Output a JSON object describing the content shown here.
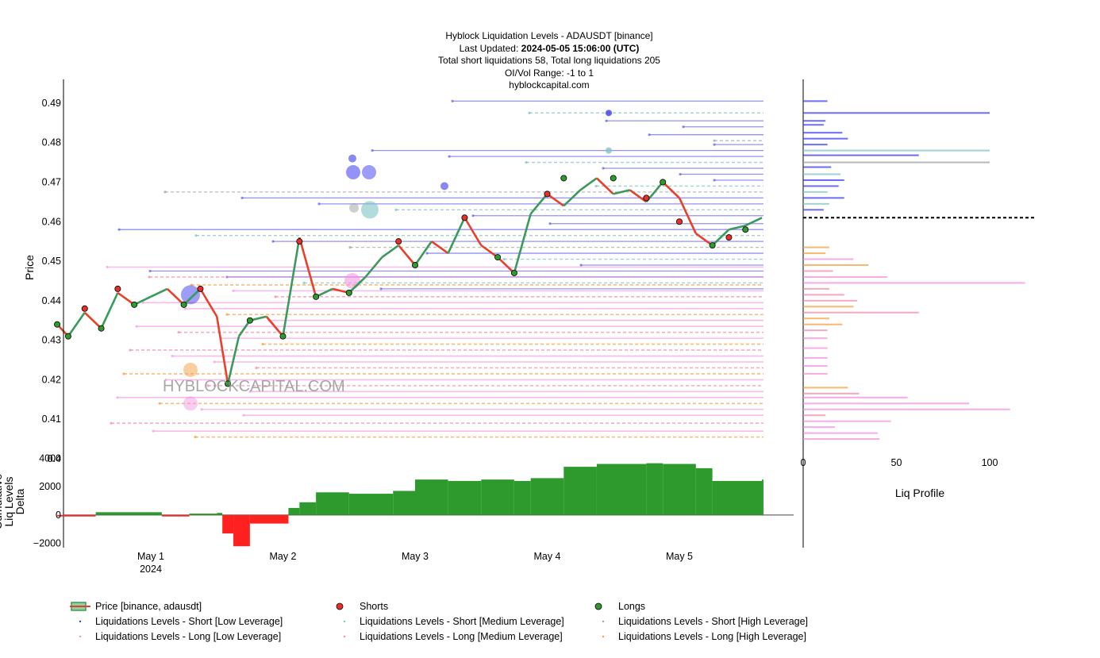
{
  "header": {
    "title": "Hyblock Liquidation Levels - ADAUSDT [binance]",
    "last_updated_label": "Last Updated: ",
    "last_updated_value": "2024-05-05 15:06:00 (UTC)",
    "totals": "Total short liquidations 58, Total long liquidations 205",
    "oi_range": "OI/Vol Range: -1 to 1",
    "site": "hyblockcapital.com"
  },
  "watermark": "HYBLOCKCAPITAL.COM",
  "colors": {
    "short_low": "#3b3bf0",
    "short_medium": "#7fc4c4",
    "short_high": "#a0a0a0",
    "long_low": "#f48fe0",
    "long_medium": "#f48aa8",
    "long_high": "#f5a040",
    "price_up": "#3a9a5a",
    "price_down": "#e8402a",
    "shorts_marker": "#e8302a",
    "longs_marker": "#2e9a2e",
    "delta_pos": "#2e9a2e",
    "delta_neg": "#ff2020"
  },
  "chart_data": [
    {
      "type": "line",
      "name": "price-panel",
      "ylabel": "Price",
      "ylim": [
        0.4,
        0.496
      ],
      "y_ticks": [
        "0.4",
        "0.41",
        "0.42",
        "0.43",
        "0.44",
        "0.45",
        "0.46",
        "0.47",
        "0.48",
        "0.49"
      ],
      "x_ticks": [
        "May 1",
        "May 2",
        "May 3",
        "May 4",
        "May 5"
      ],
      "x_sub": "2024",
      "xlim": [
        "2024-04-30 04:00",
        "2024-05-06 00:00"
      ],
      "price": {
        "x": [
          "2024-04-30 07:00",
          "2024-04-30 09:00",
          "2024-04-30 12:00",
          "2024-04-30 15:00",
          "2024-04-30 18:00",
          "2024-04-30 21:00",
          "2024-05-01 00:00",
          "2024-05-01 03:00",
          "2024-05-01 06:00",
          "2024-05-01 09:00",
          "2024-05-01 12:00",
          "2024-05-01 14:00",
          "2024-05-01 16:00",
          "2024-05-01 18:00",
          "2024-05-01 21:00",
          "2024-05-02 00:00",
          "2024-05-02 03:00",
          "2024-05-02 06:00",
          "2024-05-02 09:00",
          "2024-05-02 12:00",
          "2024-05-02 15:00",
          "2024-05-02 18:00",
          "2024-05-02 21:00",
          "2024-05-03 00:00",
          "2024-05-03 03:00",
          "2024-05-03 06:00",
          "2024-05-03 09:00",
          "2024-05-03 12:00",
          "2024-05-03 15:00",
          "2024-05-03 18:00",
          "2024-05-03 21:00",
          "2024-05-04 00:00",
          "2024-05-04 03:00",
          "2024-05-04 06:00",
          "2024-05-04 09:00",
          "2024-05-04 12:00",
          "2024-05-04 15:00",
          "2024-05-04 18:00",
          "2024-05-04 21:00",
          "2024-05-05 00:00",
          "2024-05-05 03:00",
          "2024-05-05 06:00",
          "2024-05-05 09:00",
          "2024-05-05 12:00",
          "2024-05-05 15:00"
        ],
        "y": [
          0.434,
          0.431,
          0.437,
          0.433,
          0.442,
          0.439,
          0.441,
          0.443,
          0.439,
          0.443,
          0.436,
          0.419,
          0.431,
          0.435,
          0.436,
          0.431,
          0.456,
          0.441,
          0.443,
          0.442,
          0.446,
          0.451,
          0.454,
          0.449,
          0.455,
          0.452,
          0.461,
          0.454,
          0.451,
          0.447,
          0.462,
          0.467,
          0.464,
          0.468,
          0.471,
          0.467,
          0.468,
          0.465,
          0.47,
          0.466,
          0.457,
          0.454,
          0.458,
          0.459,
          0.461
        ]
      },
      "shorts": {
        "x": [
          "2024-04-30 12:00",
          "2024-04-30 18:00",
          "2024-05-01 09:00",
          "2024-05-02 03:00",
          "2024-05-02 21:00",
          "2024-05-03 09:00",
          "2024-05-04 00:00",
          "2024-05-04 18:00",
          "2024-05-05 00:00",
          "2024-05-05 09:00"
        ],
        "y": [
          0.438,
          0.443,
          0.443,
          0.455,
          0.455,
          0.461,
          0.467,
          0.466,
          0.46,
          0.456
        ]
      },
      "longs": {
        "x": [
          "2024-04-30 07:00",
          "2024-04-30 09:00",
          "2024-04-30 15:00",
          "2024-04-30 21:00",
          "2024-05-01 06:00",
          "2024-05-01 14:00",
          "2024-05-01 18:00",
          "2024-05-02 00:00",
          "2024-05-02 06:00",
          "2024-05-02 12:00",
          "2024-05-03 00:00",
          "2024-05-03 15:00",
          "2024-05-03 18:00",
          "2024-05-04 03:00",
          "2024-05-04 12:00",
          "2024-05-04 21:00",
          "2024-05-05 06:00",
          "2024-05-05 12:00"
        ],
        "y": [
          0.434,
          0.431,
          0.433,
          0.439,
          0.439,
          0.419,
          0.435,
          0.431,
          0.441,
          0.442,
          0.449,
          0.451,
          0.447,
          0.471,
          0.471,
          0.47,
          0.454,
          0.458
        ]
      },
      "liq_levels": {
        "short": [
          0.4905,
          0.4875,
          0.4855,
          0.484,
          0.482,
          0.4805,
          0.4795,
          0.478,
          0.4765,
          0.475,
          0.4735,
          0.472,
          0.4705,
          0.469,
          0.4675,
          0.466,
          0.4645,
          0.463,
          0.4615,
          0.4595,
          0.458,
          0.4565,
          0.455,
          0.4535,
          0.452,
          0.4505,
          0.449,
          0.4475,
          0.446,
          0.4445,
          0.443
        ],
        "long": [
          0.4485,
          0.446,
          0.444,
          0.4425,
          0.441,
          0.4395,
          0.438,
          0.4365,
          0.435,
          0.4335,
          0.432,
          0.4305,
          0.429,
          0.4275,
          0.426,
          0.4245,
          0.423,
          0.4215,
          0.42,
          0.4185,
          0.417,
          0.4155,
          0.414,
          0.4125,
          0.411,
          0.409,
          0.407,
          0.4055
        ]
      }
    },
    {
      "type": "area",
      "name": "cumulative-delta",
      "ylabel": "Cumulative Liq Levels Delta",
      "y_ticks": [
        "−2000",
        "0",
        "2000",
        "4000"
      ],
      "ylim": [
        -2300,
        4300
      ],
      "x": [
        "2024-04-30 07:00",
        "2024-04-30 14:00",
        "2024-05-01 02:00",
        "2024-05-01 07:00",
        "2024-05-01 12:00",
        "2024-05-01 13:00",
        "2024-05-01 15:00",
        "2024-05-01 18:00",
        "2024-05-02 01:00",
        "2024-05-02 03:00",
        "2024-05-02 06:00",
        "2024-05-02 12:00",
        "2024-05-02 20:00",
        "2024-05-03 00:00",
        "2024-05-03 06:00",
        "2024-05-03 12:00",
        "2024-05-03 18:00",
        "2024-05-03 21:00",
        "2024-05-04 03:00",
        "2024-05-04 09:00",
        "2024-05-04 18:00",
        "2024-05-04 21:00",
        "2024-05-05 03:00",
        "2024-05-05 06:00",
        "2024-05-05 15:00"
      ],
      "values": [
        -100,
        200,
        -100,
        100,
        150,
        -1300,
        -2200,
        -600,
        500,
        900,
        1600,
        1500,
        1700,
        2500,
        2400,
        2500,
        2400,
        2600,
        3400,
        3600,
        3650,
        3600,
        3300,
        2400,
        2500
      ]
    },
    {
      "type": "bar",
      "name": "liq-profile",
      "xlabel": "Liq Profile",
      "x_ticks": [
        "0",
        "50",
        "100"
      ],
      "xlim": [
        0,
        125
      ],
      "current_price": 0.461
    }
  ],
  "legend": [
    {
      "label": "Price [binance, adausdt]"
    },
    {
      "label": "Shorts"
    },
    {
      "label": "Longs"
    },
    {
      "label": "Liquidations Levels - Short [Low Leverage]"
    },
    {
      "label": "Liquidations Levels - Short [Medium Leverage]"
    },
    {
      "label": "Liquidations Levels - Short [High Leverage]"
    },
    {
      "label": "Liquidations Levels - Long [Low Leverage]"
    },
    {
      "label": "Liquidations Levels - Long [Medium Leverage]"
    },
    {
      "label": "Liquidations Levels - Long [High Leverage]"
    }
  ]
}
